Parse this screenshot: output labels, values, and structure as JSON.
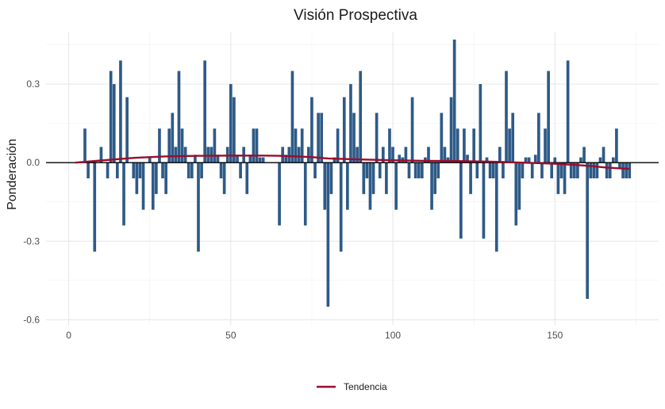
{
  "chart_data": {
    "type": "bar",
    "title": "Visión Prospectiva",
    "xlabel": "",
    "ylabel": "Ponderación",
    "xlim": [
      -7,
      182
    ],
    "ylim": [
      -0.62,
      0.5
    ],
    "x_ticks": [
      0,
      50,
      100,
      150
    ],
    "y_ticks": [
      -0.6,
      -0.3,
      0.0,
      0.3
    ],
    "y_tick_labels": [
      "-0.6",
      "-0.3",
      "0.0",
      "0.3"
    ],
    "grid": true,
    "legend_position": "bottom",
    "colors": {
      "bars": "#2E5A87",
      "trend": "#9B0C2C",
      "zero_line": "#000000"
    },
    "series": [
      {
        "name": "",
        "type": "bar",
        "x": [
          5,
          6,
          8,
          10,
          12,
          13,
          14,
          15,
          16,
          17,
          18,
          20,
          21,
          22,
          23,
          25,
          26,
          27,
          28,
          29,
          30,
          31,
          32,
          33,
          34,
          35,
          36,
          37,
          38,
          39,
          40,
          41,
          42,
          43,
          44,
          45,
          46,
          47,
          48,
          49,
          50,
          51,
          52,
          53,
          54,
          55,
          56,
          57,
          58,
          59,
          60,
          65,
          66,
          67,
          68,
          69,
          70,
          71,
          72,
          73,
          74,
          75,
          76,
          77,
          78,
          79,
          80,
          81,
          82,
          83,
          84,
          85,
          86,
          87,
          88,
          89,
          90,
          91,
          92,
          93,
          94,
          95,
          96,
          97,
          98,
          99,
          100,
          101,
          102,
          103,
          104,
          105,
          106,
          107,
          108,
          109,
          110,
          111,
          112,
          113,
          114,
          115,
          116,
          117,
          118,
          119,
          120,
          121,
          122,
          123,
          124,
          125,
          126,
          127,
          128,
          129,
          130,
          131,
          132,
          133,
          134,
          135,
          136,
          137,
          138,
          139,
          140,
          141,
          142,
          143,
          144,
          145,
          146,
          147,
          148,
          149,
          150,
          151,
          152,
          153,
          154,
          155,
          156,
          157,
          158,
          159,
          160,
          161,
          162,
          163,
          164,
          165,
          166,
          167,
          168,
          169,
          170,
          171,
          172,
          173
        ],
        "values": [
          0.13,
          -0.06,
          -0.34,
          0.06,
          -0.06,
          0.35,
          0.3,
          -0.06,
          0.39,
          -0.24,
          0.25,
          -0.06,
          -0.12,
          -0.06,
          -0.18,
          0.02,
          -0.18,
          -0.12,
          0.13,
          -0.06,
          -0.12,
          0.13,
          0.19,
          0.06,
          0.35,
          0.13,
          0.06,
          -0.06,
          -0.06,
          0.03,
          -0.34,
          -0.06,
          0.39,
          0.06,
          0.06,
          0.13,
          0.03,
          -0.06,
          -0.12,
          0.06,
          0.3,
          0.25,
          0.03,
          -0.06,
          0.06,
          -0.12,
          0.03,
          0.13,
          0.13,
          0.02,
          0.02,
          -0.24,
          0.06,
          0.03,
          0.06,
          0.35,
          0.13,
          0.06,
          0.13,
          -0.24,
          0.06,
          0.25,
          -0.06,
          0.19,
          0.19,
          -0.18,
          -0.55,
          -0.12,
          0.02,
          0.13,
          -0.34,
          0.25,
          -0.18,
          0.3,
          0.19,
          0.06,
          0.35,
          -0.12,
          -0.06,
          -0.18,
          -0.12,
          0.19,
          -0.06,
          0.06,
          -0.12,
          0.13,
          0.06,
          -0.18,
          0.03,
          0.02,
          0.06,
          -0.06,
          0.25,
          -0.06,
          -0.06,
          -0.06,
          0.02,
          0.06,
          -0.18,
          -0.12,
          -0.06,
          0.19,
          0.06,
          0.02,
          0.25,
          0.47,
          0.13,
          -0.29,
          0.13,
          0.03,
          -0.12,
          0.13,
          -0.06,
          0.3,
          -0.29,
          0.02,
          -0.06,
          -0.06,
          -0.34,
          0.06,
          -0.06,
          0.35,
          0.13,
          0.19,
          -0.24,
          -0.18,
          -0.06,
          0.02,
          0.02,
          -0.06,
          0.03,
          0.19,
          -0.06,
          0.13,
          0.35,
          -0.06,
          0.02,
          -0.12,
          -0.06,
          -0.12,
          0.39,
          -0.06,
          -0.06,
          -0.06,
          0.02,
          0.06,
          -0.52,
          -0.06,
          -0.06,
          -0.06,
          0.02,
          0.06,
          -0.06,
          -0.06,
          0.02,
          0.13,
          -0.02,
          -0.06,
          -0.06,
          -0.06
        ]
      },
      {
        "name": "Tendencia",
        "type": "line",
        "x": [
          2,
          10,
          20,
          30,
          40,
          50,
          60,
          65,
          70,
          75,
          80,
          90,
          100,
          110,
          120,
          130,
          140,
          150,
          160,
          165,
          170,
          173
        ],
        "values": [
          0.0,
          0.008,
          0.018,
          0.024,
          0.026,
          0.027,
          0.027,
          0.026,
          0.024,
          0.021,
          0.016,
          0.012,
          0.009,
          0.007,
          0.006,
          0.004,
          0.0,
          -0.004,
          -0.012,
          -0.018,
          -0.022,
          -0.024
        ]
      }
    ]
  }
}
